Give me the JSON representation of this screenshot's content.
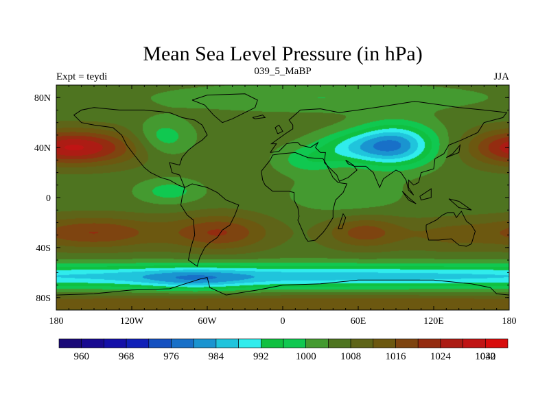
{
  "chart_data": {
    "type": "heatmap",
    "title": "Mean Sea Level Pressure (in hPa)",
    "subtitle_left": "Expt = teydi",
    "subtitle_center": "039_5_MaBP",
    "subtitle_right": "JJA",
    "x_ticks": [
      {
        "value": -180,
        "label": "180"
      },
      {
        "value": -120,
        "label": "120W"
      },
      {
        "value": -60,
        "label": "60W"
      },
      {
        "value": 0,
        "label": "0"
      },
      {
        "value": 60,
        "label": "60E"
      },
      {
        "value": 120,
        "label": "120E"
      },
      {
        "value": 180,
        "label": "180"
      }
    ],
    "y_ticks": [
      {
        "value": 80,
        "label": "80N"
      },
      {
        "value": 40,
        "label": "40N"
      },
      {
        "value": 0,
        "label": "0"
      },
      {
        "value": -40,
        "label": "40S"
      },
      {
        "value": -80,
        "label": "80S"
      }
    ],
    "xlim": [
      -180,
      180
    ],
    "ylim": [
      -90,
      90
    ],
    "colorbar": {
      "colors": [
        "#1a0a78",
        "#180a90",
        "#1410a8",
        "#1020b8",
        "#1450c0",
        "#1870c8",
        "#1a94d0",
        "#20c4dc",
        "#30ecec",
        "#10c040",
        "#10c850",
        "#449a30",
        "#4e7420",
        "#5e6418",
        "#6c5810",
        "#7e4410",
        "#942c10",
        "#ac1c14",
        "#c01414",
        "#d80c0c"
      ],
      "labels": [
        "960",
        "968",
        "976",
        "984",
        "992",
        "1000",
        "1008",
        "1016",
        "1024",
        "1032",
        "1040"
      ],
      "label_slots": [
        1,
        3,
        5,
        7,
        9,
        11,
        13,
        15,
        17,
        19
      ]
    },
    "field": {
      "background_level": 1006,
      "features": [
        {
          "name": "asian-low",
          "lon": 90,
          "lat": 42,
          "sx": 22,
          "sy": 12,
          "amp": -24
        },
        {
          "name": "asian-low-west",
          "lon": 55,
          "lat": 40,
          "sx": 22,
          "sy": 9,
          "amp": -12
        },
        {
          "name": "indian-low",
          "lon": 20,
          "lat": 30,
          "sx": 18,
          "sy": 8,
          "amp": -8
        },
        {
          "name": "north-america-low",
          "lon": -95,
          "lat": 48,
          "sx": 16,
          "sy": 10,
          "amp": -9
        },
        {
          "name": "north-atlantic-high",
          "lon": -140,
          "lat": 40,
          "sx": 26,
          "sy": 10,
          "amp": 12
        },
        {
          "name": "north-atlantic-high-2",
          "lon": -160,
          "lat": 40,
          "sx": 18,
          "sy": 9,
          "amp": 6
        },
        {
          "name": "north-pacific-high",
          "lon": 175,
          "lat": 40,
          "sx": 22,
          "sy": 10,
          "amp": 14
        },
        {
          "name": "south-atlantic-high",
          "lon": -150,
          "lat": -28,
          "sx": 38,
          "sy": 9,
          "amp": 14
        },
        {
          "name": "south-atlantic-high-2",
          "lon": -50,
          "lat": -28,
          "sx": 28,
          "sy": 10,
          "amp": 14
        },
        {
          "name": "indian-ocean-high",
          "lon": 65,
          "lat": -28,
          "sx": 22,
          "sy": 9,
          "amp": 12
        },
        {
          "name": "australia-high",
          "lon": 130,
          "lat": -30,
          "sx": 25,
          "sy": 9,
          "amp": 6
        },
        {
          "name": "equator-low",
          "lon": -90,
          "lat": 5,
          "sx": 18,
          "sy": 7,
          "amp": -8
        },
        {
          "name": "africa-equator-low",
          "lon": 50,
          "lat": 2,
          "sx": 30,
          "sy": 10,
          "amp": -6
        },
        {
          "name": "southern-trough",
          "lon": 0,
          "lat": -63,
          "sx": 400,
          "sy": 7,
          "amp": -20
        },
        {
          "name": "southern-trough-west",
          "lon": -70,
          "lat": -66,
          "sx": 30,
          "sy": 6,
          "amp": -8
        },
        {
          "name": "antarctic-rise",
          "lon": 0,
          "lat": -85,
          "sx": 400,
          "sy": 5,
          "amp": 10
        },
        {
          "name": "arctic-low",
          "lon": 30,
          "lat": 80,
          "sx": 90,
          "sy": 8,
          "amp": -6
        }
      ]
    },
    "coastlines": [
      [
        [
          -150,
          72
        ],
        [
          -160,
          70
        ],
        [
          -166,
          66
        ],
        [
          -160,
          60
        ],
        [
          -150,
          58
        ],
        [
          -135,
          56
        ],
        [
          -128,
          50
        ],
        [
          -124,
          42
        ],
        [
          -118,
          34
        ],
        [
          -110,
          24
        ],
        [
          -105,
          20
        ],
        [
          -97,
          16
        ],
        [
          -90,
          14
        ],
        [
          -83,
          10
        ],
        [
          -78,
          8
        ],
        [
          -82,
          18
        ],
        [
          -88,
          20
        ],
        [
          -90,
          28
        ],
        [
          -82,
          26
        ],
        [
          -80,
          32
        ],
        [
          -75,
          38
        ],
        [
          -70,
          42
        ],
        [
          -64,
          46
        ],
        [
          -60,
          50
        ],
        [
          -64,
          58
        ],
        [
          -70,
          62
        ],
        [
          -80,
          64
        ],
        [
          -90,
          68
        ],
        [
          -110,
          70
        ],
        [
          -130,
          70
        ],
        [
          -150,
          72
        ]
      ],
      [
        [
          -72,
          78
        ],
        [
          -60,
          82
        ],
        [
          -30,
          83
        ],
        [
          -20,
          78
        ],
        [
          -22,
          72
        ],
        [
          -40,
          63
        ],
        [
          -48,
          60
        ],
        [
          -55,
          66
        ],
        [
          -62,
          74
        ],
        [
          -72,
          78
        ]
      ],
      [
        [
          -78,
          8
        ],
        [
          -80,
          0
        ],
        [
          -81,
          -6
        ],
        [
          -76,
          -14
        ],
        [
          -71,
          -18
        ],
        [
          -70,
          -30
        ],
        [
          -73,
          -40
        ],
        [
          -75,
          -50
        ],
        [
          -68,
          -55
        ],
        [
          -66,
          -48
        ],
        [
          -62,
          -40
        ],
        [
          -58,
          -36
        ],
        [
          -52,
          -32
        ],
        [
          -48,
          -26
        ],
        [
          -42,
          -22
        ],
        [
          -38,
          -14
        ],
        [
          -35,
          -6
        ],
        [
          -45,
          -2
        ],
        [
          -52,
          4
        ],
        [
          -60,
          8
        ],
        [
          -72,
          11
        ],
        [
          -78,
          8
        ]
      ],
      [
        [
          -10,
          36
        ],
        [
          -5,
          43
        ],
        [
          -9,
          43
        ],
        [
          2,
          51
        ],
        [
          8,
          55
        ],
        [
          8,
          58
        ],
        [
          5,
          62
        ],
        [
          14,
          70
        ],
        [
          30,
          71
        ],
        [
          45,
          68
        ],
        [
          60,
          70
        ],
        [
          80,
          73
        ],
        [
          105,
          77
        ],
        [
          140,
          72
        ],
        [
          160,
          70
        ],
        [
          178,
          68
        ],
        [
          175,
          64
        ],
        [
          160,
          60
        ],
        [
          155,
          52
        ],
        [
          142,
          46
        ],
        [
          132,
          42
        ],
        [
          128,
          35
        ],
        [
          121,
          31
        ],
        [
          120,
          23
        ],
        [
          110,
          20
        ],
        [
          108,
          12
        ],
        [
          104,
          10
        ],
        [
          100,
          14
        ],
        [
          100,
          8
        ],
        [
          104,
          2
        ],
        [
          100,
          6
        ],
        [
          98,
          14
        ],
        [
          94,
          20
        ],
        [
          90,
          22
        ],
        [
          80,
          15
        ],
        [
          77,
          8
        ],
        [
          72,
          20
        ],
        [
          66,
          25
        ],
        [
          57,
          25
        ],
        [
          52,
          27
        ],
        [
          50,
          30
        ],
        [
          56,
          26
        ],
        [
          59,
          22
        ],
        [
          52,
          16
        ],
        [
          45,
          13
        ],
        [
          43,
          18
        ],
        [
          37,
          24
        ],
        [
          33,
          28
        ],
        [
          34,
          36
        ],
        [
          30,
          36
        ],
        [
          26,
          40
        ],
        [
          28,
          44
        ],
        [
          22,
          40
        ],
        [
          14,
          42
        ],
        [
          12,
          44
        ],
        [
          8,
          44
        ],
        [
          3,
          43
        ],
        [
          -3,
          37
        ],
        [
          -10,
          36
        ]
      ],
      [
        [
          -17,
          21
        ],
        [
          -16,
          14
        ],
        [
          -14,
          10
        ],
        [
          -8,
          5
        ],
        [
          5,
          5
        ],
        [
          9,
          4
        ],
        [
          9,
          -2
        ],
        [
          12,
          -8
        ],
        [
          13,
          -15
        ],
        [
          12,
          -18
        ],
        [
          18,
          -32
        ],
        [
          20,
          -35
        ],
        [
          26,
          -34
        ],
        [
          32,
          -28
        ],
        [
          35,
          -24
        ],
        [
          40,
          -16
        ],
        [
          40,
          -10
        ],
        [
          42,
          -2
        ],
        [
          48,
          4
        ],
        [
          51,
          11
        ],
        [
          44,
          12
        ],
        [
          40,
          16
        ],
        [
          34,
          28
        ],
        [
          32,
          31
        ],
        [
          20,
          32
        ],
        [
          10,
          36
        ],
        [
          -2,
          35
        ],
        [
          -8,
          34
        ],
        [
          -10,
          30
        ],
        [
          -17,
          21
        ]
      ],
      [
        [
          114,
          -22
        ],
        [
          114,
          -26
        ],
        [
          116,
          -34
        ],
        [
          124,
          -34
        ],
        [
          134,
          -33
        ],
        [
          140,
          -38
        ],
        [
          146,
          -39
        ],
        [
          150,
          -37
        ],
        [
          153,
          -27
        ],
        [
          150,
          -22
        ],
        [
          146,
          -19
        ],
        [
          142,
          -11
        ],
        [
          138,
          -16
        ],
        [
          136,
          -12
        ],
        [
          131,
          -12
        ],
        [
          127,
          -14
        ],
        [
          122,
          -18
        ],
        [
          114,
          -22
        ]
      ],
      [
        [
          -180,
          -78
        ],
        [
          -150,
          -77
        ],
        [
          -120,
          -74
        ],
        [
          -90,
          -73
        ],
        [
          -65,
          -65
        ],
        [
          -60,
          -64
        ],
        [
          -58,
          -72
        ],
        [
          -45,
          -78
        ],
        [
          -20,
          -74
        ],
        [
          0,
          -70
        ],
        [
          30,
          -69
        ],
        [
          60,
          -66
        ],
        [
          90,
          -66
        ],
        [
          120,
          -66
        ],
        [
          150,
          -69
        ],
        [
          165,
          -72
        ],
        [
          170,
          -77
        ],
        [
          180,
          -78
        ]
      ],
      [
        [
          44,
          -25
        ],
        [
          48,
          -13
        ],
        [
          50,
          -16
        ],
        [
          47,
          -25
        ],
        [
          44,
          -25
        ]
      ],
      [
        [
          -4,
          51
        ],
        [
          -6,
          56
        ],
        [
          -3,
          58
        ],
        [
          0,
          53
        ],
        [
          -4,
          51
        ]
      ],
      [
        [
          130,
          32
        ],
        [
          135,
          35
        ],
        [
          141,
          42
        ],
        [
          140,
          36
        ],
        [
          130,
          32
        ]
      ],
      [
        [
          95,
          5
        ],
        [
          100,
          0
        ],
        [
          106,
          -5
        ],
        [
          100,
          -2
        ],
        [
          95,
          5
        ]
      ],
      [
        [
          109,
          1
        ],
        [
          118,
          7
        ],
        [
          118,
          0
        ],
        [
          110,
          -2
        ],
        [
          109,
          1
        ]
      ],
      [
        [
          132,
          -1
        ],
        [
          140,
          -3
        ],
        [
          150,
          -10
        ],
        [
          140,
          -8
        ],
        [
          132,
          -1
        ]
      ],
      [
        [
          -24,
          64
        ],
        [
          -16,
          66
        ],
        [
          -14,
          64
        ],
        [
          -22,
          63
        ],
        [
          -24,
          64
        ]
      ]
    ]
  }
}
